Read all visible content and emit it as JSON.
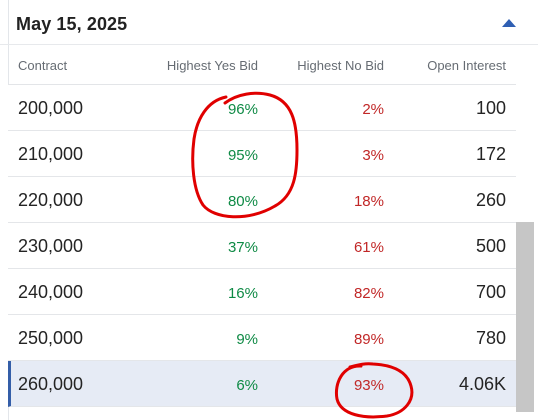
{
  "header": {
    "date": "May 15, 2025",
    "collapse_icon": "caret-up-icon"
  },
  "columns": {
    "contract": "Contract",
    "highest_yes_bid": "Highest Yes Bid",
    "highest_no_bid": "Highest No Bid",
    "open_interest": "Open Interest"
  },
  "rows": [
    {
      "contract": "200,000",
      "yes": "96%",
      "no": "2%",
      "oi": "100"
    },
    {
      "contract": "210,000",
      "yes": "95%",
      "no": "3%",
      "oi": "172"
    },
    {
      "contract": "220,000",
      "yes": "80%",
      "no": "18%",
      "oi": "260"
    },
    {
      "contract": "230,000",
      "yes": "37%",
      "no": "61%",
      "oi": "500"
    },
    {
      "contract": "240,000",
      "yes": "16%",
      "no": "82%",
      "oi": "700"
    },
    {
      "contract": "250,000",
      "yes": "9%",
      "no": "89%",
      "oi": "780"
    },
    {
      "contract": "260,000",
      "yes": "6%",
      "no": "93%",
      "oi": "4.06K"
    }
  ],
  "colors": {
    "yes": "#0e8a45",
    "no": "#c12727",
    "selected_row": "#e6ebf5",
    "accent": "#2f5fb3",
    "annotation": "#e00000"
  }
}
